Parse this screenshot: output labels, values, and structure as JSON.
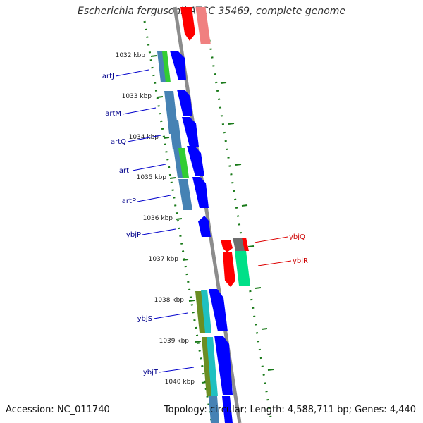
{
  "title": "Escherichia fergusonii ATCC 35469, complete genome",
  "footer": {
    "accession": "Accession: NC_011740",
    "topology": "Topology: circular; Length: 4,588,711 bp; Genes: 4,440"
  },
  "colors": {
    "forward_gene": "#0000ff",
    "reverse_gene": "#ff0000",
    "label_forward": "#00008b",
    "label_reverse": "#cc0000",
    "tick": "#1a7a1a",
    "backbone": "#808080"
  },
  "kbp_ticks": [
    "1032 kbp",
    "1033 kbp",
    "1034 kbp",
    "1035 kbp",
    "1036 kbp",
    "1037 kbp",
    "1038 kbp",
    "1039 kbp",
    "1040 kbp"
  ],
  "genes_left": [
    "artJ",
    "artM",
    "artQ",
    "artI",
    "artP",
    "ybjP",
    "ybjS",
    "ybjT"
  ],
  "genes_right": [
    "ybjQ",
    "ybjR"
  ]
}
